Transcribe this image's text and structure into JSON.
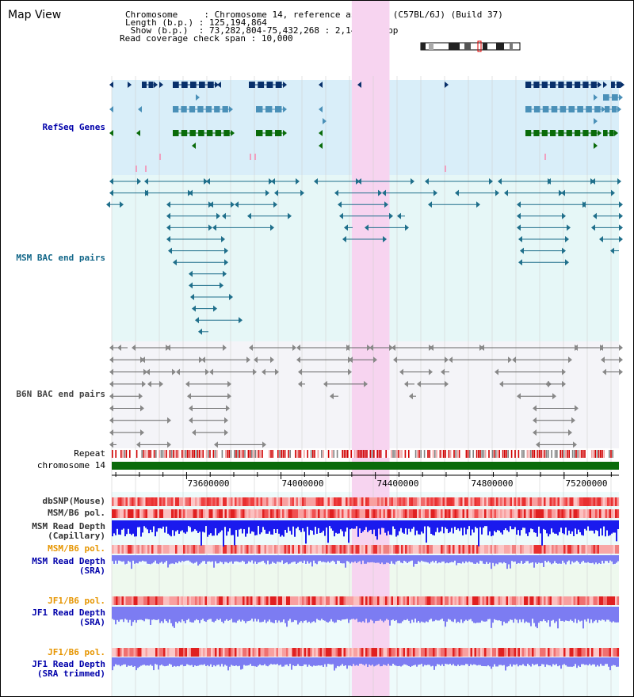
{
  "header": {
    "title": "Map View",
    "info": [
      {
        "key": "Chromosome     ",
        "value": "Chromosome 14, reference assembly (C57BL/6J) (Build 37)"
      },
      {
        "key": "Length (b.p.) ",
        "value": "125,194,864"
      },
      {
        "key": " Show (b.p.)  ",
        "value": "73,282,804-75,432,268 : 2,149,465 bp"
      },
      {
        "key": "Read coverage check span ",
        "value": "10,000"
      }
    ]
  },
  "view": {
    "start": 73282804,
    "end": 75432268,
    "highlight": [
      74300000,
      74460000
    ]
  },
  "tracks": {
    "refseq": "RefSeq Genes",
    "msm_bac": "MSM BAC end pairs",
    "b6n_bac": "B6N BAC end pairs",
    "repeat": "Repeat",
    "chrom": "chromosome 14",
    "dbsnp": "dbSNP(Mouse)",
    "msm_b6_pol_1": "MSM/B6 pol.",
    "msm_depth_cap": "MSM Read Depth",
    "msm_depth_cap_sub": "(Capillary)",
    "msm_b6_pol_2": "MSM/B6 pol.",
    "msm_depth_sra": "MSM Read Depth",
    "msm_depth_sra_sub": "(SRA)",
    "jf1_b6_pol_1": "JF1/B6 pol.",
    "jf1_depth_sra": "JF1 Read Depth",
    "jf1_depth_sra_sub": "(SRA)",
    "jf1_b6_pol_2": "JF1/B6 pol.",
    "jf1_depth_trim": "JF1 Read Depth",
    "jf1_depth_trim_sub": "(SRA trimmed)"
  },
  "axis": {
    "ticks": [
      "73600000",
      "74000000",
      "74400000",
      "74800000",
      "75200000"
    ]
  },
  "colors": {
    "refseq_bg": "#d9eef9",
    "msm_bg": "#e6f7f7",
    "b6n_bg": "#f4f4f8",
    "highlight": "#f7d4f0",
    "gene_dark": "#08306b",
    "gene_mid": "#4a90b8",
    "gene_green": "#0a6b0a",
    "msm_bac": "#1f6f8b",
    "b6n_bac": "#666666",
    "depth_blue": "#1a1aee",
    "depth_light": "#7c7cf2",
    "label_blue": "#0000aa",
    "label_orange": "#e69500",
    "label_teal": "#116688"
  }
}
